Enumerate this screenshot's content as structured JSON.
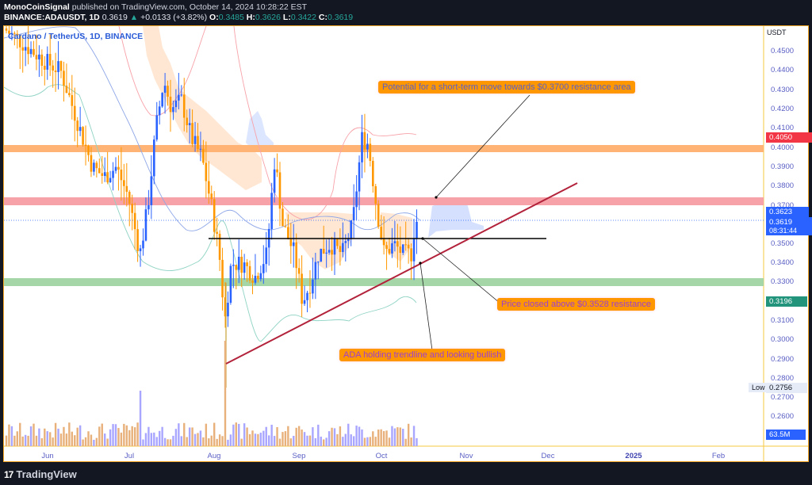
{
  "header": {
    "author": "MonoCoinSignal",
    "published_text": "published on TradingView.com, October 14, 2024 10:28:22 EST",
    "symbol": "BINANCE:ADAUSDT, 1D",
    "last": "0.3619",
    "change_arrow": "▲",
    "change": "+0.0133 (+3.82%)",
    "ohlc": {
      "o_label": "O:",
      "o": "0.3485",
      "h_label": "H:",
      "h": "0.3626",
      "l_label": "L:",
      "l": "0.3422",
      "c_label": "C:",
      "c": "0.3619"
    }
  },
  "legend": {
    "title": "Cardano / TetherUS, 1D, BINANCE"
  },
  "price_axis": {
    "currency": "USDT",
    "ticks": [
      "0.4500",
      "0.4400",
      "0.4300",
      "0.4200",
      "0.4100",
      "0.4000",
      "0.3900",
      "0.3800",
      "0.3700",
      "0.3500",
      "0.3400",
      "0.3300",
      "0.3100",
      "0.3000",
      "0.2900",
      "0.2800",
      "0.2700",
      "0.2600"
    ],
    "tags": {
      "red_level": "0.4050",
      "price_high": "0.3623",
      "price_last": "0.3619",
      "countdown": "08:31:44",
      "green_level": "0.3196",
      "low_label": "Low",
      "low_value": "0.2756",
      "volume": "63.5M"
    }
  },
  "time_axis": {
    "labels": [
      "Jun",
      "Jul",
      "Aug",
      "Sep",
      "Oct",
      "Nov",
      "Dec",
      "2025",
      "Feb"
    ]
  },
  "annotations": {
    "a1": "Potential for a short-term move towards $0.3700 resistance area",
    "a2": "Price closed above $0.3528 resistance",
    "a3": "ADA holding trendline and looking bullish"
  },
  "footer": {
    "brand": "TradingView",
    "logo": "17"
  },
  "colors": {
    "up_candle": "#2962ff",
    "down_candle": "#ff9800",
    "resistance_zone": "#f7a1a8",
    "upper_zone": "#ffb476",
    "support_zone": "#a5d6a7",
    "trendline": "#b2223a",
    "resistance_line": "#000000",
    "red_tag": "#f23645",
    "blue_tag": "#2962ff",
    "green_tag": "#22947c"
  },
  "chart_data": {
    "type": "candlestick",
    "title": "Cardano / TetherUS, 1D, BINANCE",
    "symbol": "ADAUSDT",
    "timeframe": "1D",
    "ylabel": "USDT",
    "ylim": [
      0.255,
      0.458
    ],
    "x_labels": [
      "Jun",
      "Jul",
      "Aug",
      "Sep",
      "Oct",
      "Nov",
      "Dec",
      "2025",
      "Feb"
    ],
    "last_bar": {
      "open": 0.3485,
      "high": 0.3626,
      "low": 0.3422,
      "close": 0.3619,
      "change": 0.0133,
      "change_pct": 3.82
    },
    "period_low": 0.2756,
    "horizontal_levels": [
      {
        "name": "upper zone",
        "price": 0.3995,
        "color": "#ffb476"
      },
      {
        "name": "resistance zone",
        "price": 0.3715,
        "color": "#f7a1a8"
      },
      {
        "name": "breakout line",
        "price": 0.3528,
        "color": "#000000"
      },
      {
        "name": "support zone",
        "price": 0.33,
        "color": "#a5d6a7"
      }
    ],
    "trendline": {
      "from": {
        "date": "Aug 5",
        "price": 0.288
      },
      "to": {
        "date": "Nov 28",
        "price": 0.381
      }
    },
    "price_tags": [
      0.405,
      0.3623,
      0.3619,
      0.3196
    ],
    "approx_closes_by_month": [
      {
        "month": "Jun",
        "close": 0.44
      },
      {
        "month": "Jul",
        "close": 0.39
      },
      {
        "month": "Aug",
        "close": 0.34
      },
      {
        "month": "Sep",
        "close": 0.33
      },
      {
        "month": "Oct start",
        "close": 0.35
      },
      {
        "month": "Oct 14",
        "close": 0.3619
      }
    ],
    "volume_last": "63.5M",
    "grid": false,
    "legend_position": "top-left"
  }
}
